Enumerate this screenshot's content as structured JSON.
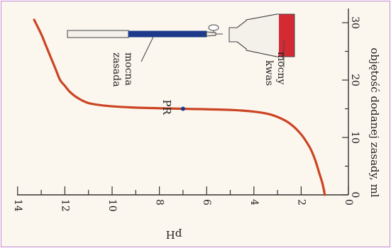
{
  "chart_data": {
    "type": "line",
    "orientation": "rotated-90-clockwise",
    "title": "",
    "xlabel": "objętość dodanej zasady, ml",
    "ylabel": "pH",
    "xlim": [
      0,
      31
    ],
    "ylim": [
      0,
      14.2
    ],
    "x_ticks": [
      "0",
      "10",
      "20",
      "30"
    ],
    "y_ticks": [
      "0",
      "2",
      "4",
      "6",
      "8",
      "10",
      "12",
      "14"
    ],
    "grid": false,
    "series": [
      {
        "color": "#cc4422",
        "x": [
          0,
          2,
          4,
          6,
          8,
          10,
          11,
          12,
          13,
          14,
          14.5,
          14.8,
          15,
          15.2,
          15.5,
          16,
          17,
          18,
          19,
          20,
          22,
          24,
          26,
          28,
          30.5
        ],
        "y": [
          1.0,
          1.1,
          1.25,
          1.4,
          1.6,
          1.9,
          2.1,
          2.35,
          2.7,
          3.3,
          4.0,
          5.0,
          7.0,
          9.0,
          10.2,
          11.0,
          11.5,
          11.8,
          12.0,
          12.2,
          12.4,
          12.6,
          12.8,
          13.0,
          13.3
        ]
      }
    ],
    "annotations": [
      {
        "label": "PR",
        "x": 15,
        "y": 7.0,
        "color": "#1a3a8a"
      }
    ],
    "illustration": {
      "burette_label_line1": "mocna",
      "burette_label_line2": "zasada",
      "flask_label_line1": "mocny",
      "flask_label_line2": "kwas",
      "base_color": "#1e3a8a",
      "acid_color": "#d42a34"
    }
  }
}
